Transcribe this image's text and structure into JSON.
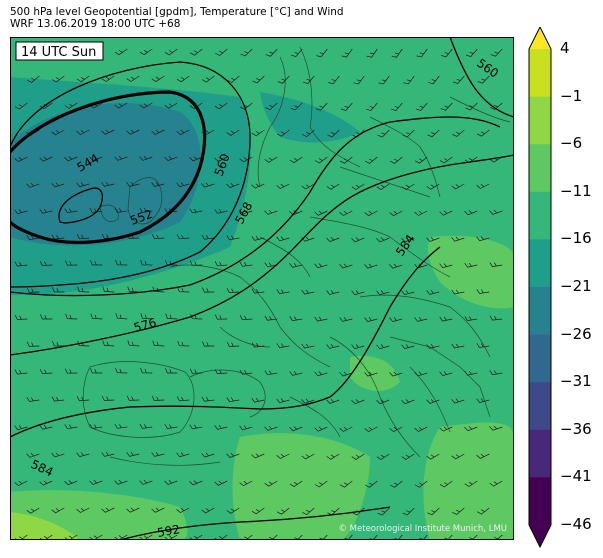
{
  "title_line1": "500 hPa level Geopotential [gpdm], Temperature [°C] and Wind",
  "title_line2": "WRF 13.06.2019 18:00 UTC +68",
  "time_label": "14 UTC Sun",
  "credit": "© Meteorological Institute Munich, LMU",
  "contour_labels": [
    "544",
    "552",
    "560",
    "568",
    "576",
    "584",
    "584",
    "592",
    "560"
  ],
  "colorbar": {
    "ticks": [
      "4",
      "−1",
      "−6",
      "−11",
      "−16",
      "−21",
      "−26",
      "−31",
      "−36",
      "−41",
      "−46"
    ],
    "colors": [
      "#fde725",
      "#c9e020",
      "#8fd744",
      "#5ec962",
      "#35b779",
      "#1f9e89",
      "#26828e",
      "#31688e",
      "#3e4989",
      "#482878",
      "#440154"
    ]
  }
}
